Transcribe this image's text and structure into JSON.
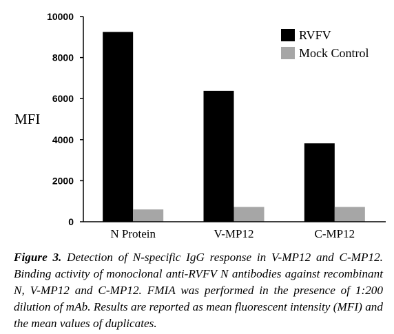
{
  "colors": {
    "rvfv": "#000000",
    "mock": "#a6a6a6",
    "axis": "#000000"
  },
  "chart_data": {
    "type": "bar",
    "categories": [
      "N Protein",
      "V-MP12",
      "C-MP12"
    ],
    "series": [
      {
        "name": "RVFV",
        "values": [
          9250,
          6380,
          3820
        ]
      },
      {
        "name": "Mock Control",
        "values": [
          600,
          720,
          720
        ]
      }
    ],
    "yticks": [
      0,
      2000,
      4000,
      6000,
      8000,
      10000
    ],
    "ylim": [
      0,
      10000
    ],
    "ylabel": "MFI",
    "xlabel": "",
    "title": "",
    "grid": false,
    "legend_position": "top-right"
  },
  "caption": {
    "label": "Figure 3.",
    "text": " Detection of N-specific IgG response in V-MP12 and C-MP12. Binding activity of monoclonal anti-RVFV N antibodies against recombinant N, V-MP12 and C-MP12. FMIA was performed in the presence of 1:200 dilution of mAb. Results are reported as mean fluorescent intensity (MFI) and the mean values of duplicates."
  }
}
